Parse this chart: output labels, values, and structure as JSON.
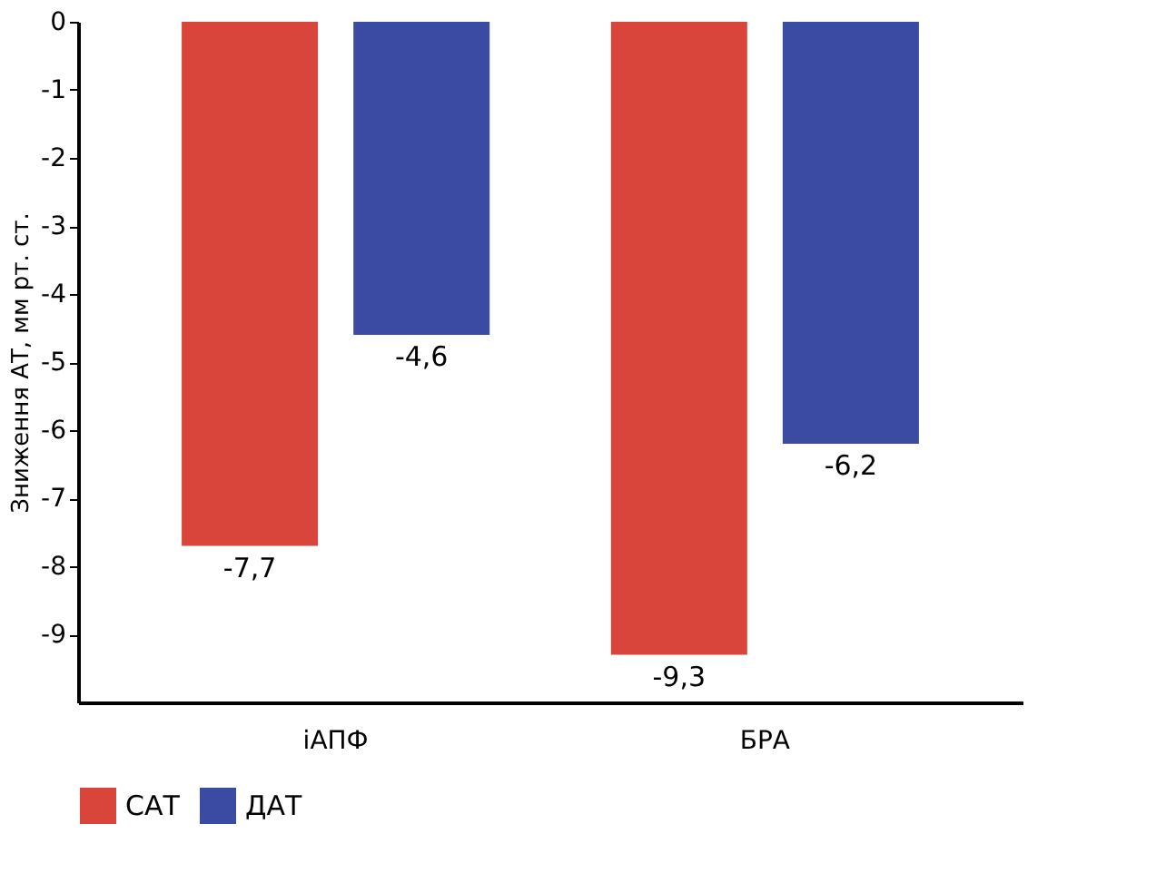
{
  "chart_data": {
    "type": "bar",
    "ylabel": "Зниження АТ, мм рт. ст.",
    "categories": [
      "іАПФ",
      "БРА"
    ],
    "series": [
      {
        "name": "САТ",
        "color": "#d9453a",
        "values": [
          -7.7,
          -9.3
        ],
        "value_labels": [
          "-7,7",
          "-9,3"
        ]
      },
      {
        "name": "ДАТ",
        "color": "#3b4aa3",
        "values": [
          -4.6,
          -6.2
        ],
        "value_labels": [
          "-4,6",
          "-6,2"
        ]
      }
    ],
    "ylim": [
      -10,
      0
    ],
    "yticks": [
      0,
      -1,
      -2,
      -3,
      -4,
      -5,
      -6,
      -7,
      -8,
      -9
    ],
    "grid": false,
    "legend": "bottom"
  }
}
